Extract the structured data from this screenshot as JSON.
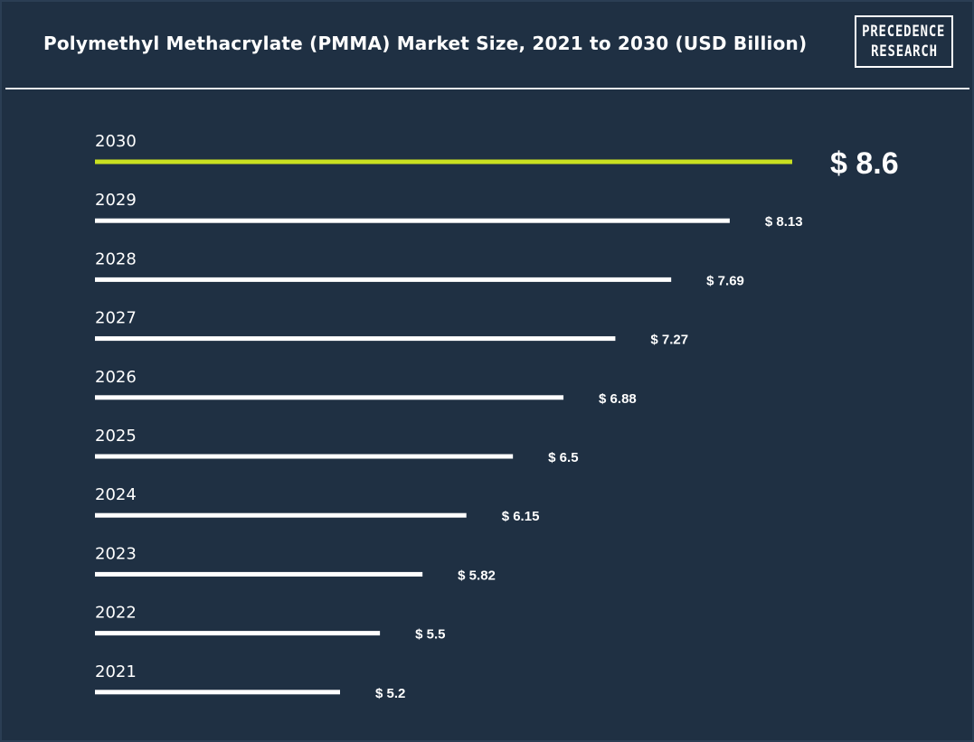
{
  "title": "Polymethyl Methacrylate (PMMA) Market Size, 2021 to 2030 (USD Billion)",
  "logo": {
    "line1": "PRECEDENCE",
    "line2": "RESEARCH"
  },
  "colors": {
    "background": "#1f3043",
    "bar": "#ffffff",
    "highlight": "#c9e021",
    "text": "#ffffff"
  },
  "chart_data": {
    "type": "bar",
    "orientation": "horizontal",
    "title": "Polymethyl Methacrylate (PMMA) Market Size, 2021 to 2030 (USD Billion)",
    "categories": [
      "2030",
      "2029",
      "2028",
      "2027",
      "2026",
      "2025",
      "2024",
      "2023",
      "2022",
      "2021"
    ],
    "values": [
      8.6,
      8.13,
      7.69,
      7.27,
      6.88,
      6.5,
      6.15,
      5.82,
      5.5,
      5.2
    ],
    "value_labels": [
      "$ 8.6",
      "$ 8.13",
      "$ 7.69",
      "$ 7.27",
      "$ 6.88",
      "$ 6.5",
      "$ 6.15",
      "$ 5.82",
      "$ 5.5",
      "$ 5.2"
    ],
    "highlight_category": "2030",
    "unit": "USD Billion",
    "grid": false,
    "legend": "none"
  }
}
